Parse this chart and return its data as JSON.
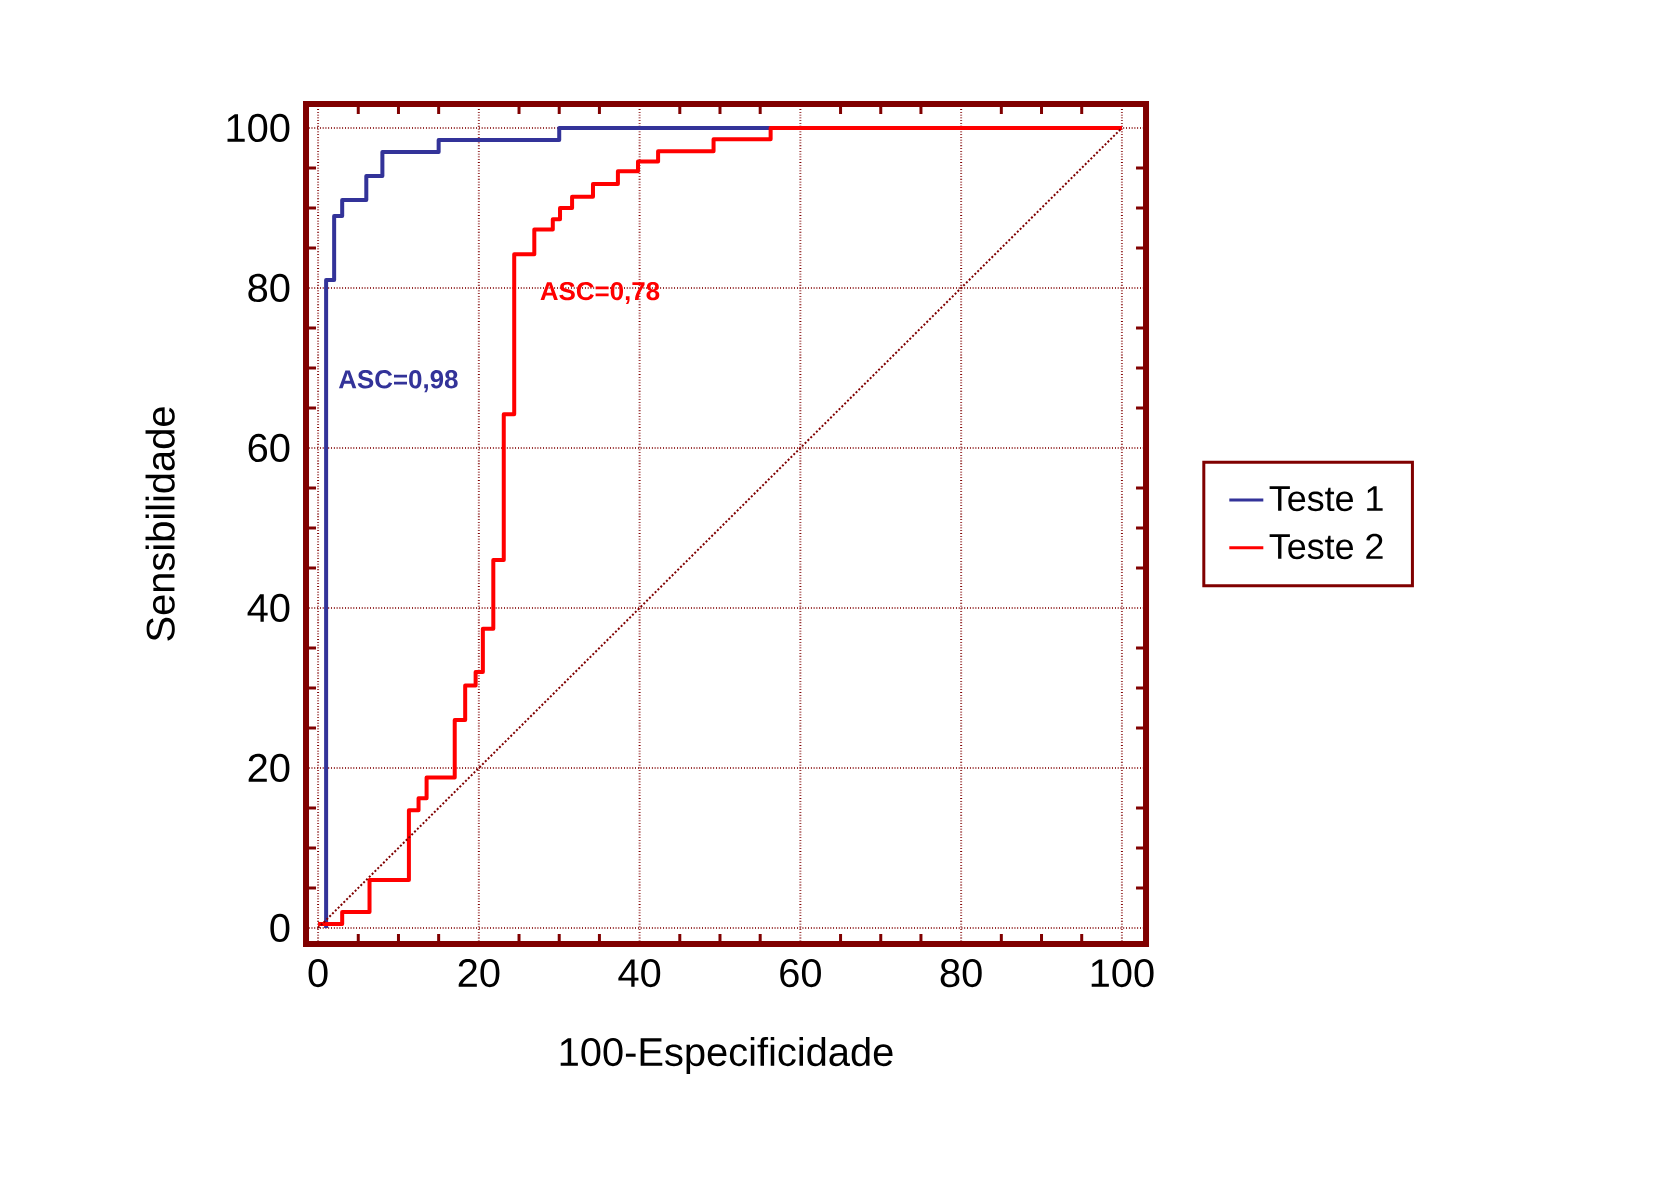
{
  "chart_data": {
    "type": "step",
    "xlabel": "100-Especificidade",
    "ylabel": "Sensibilidade",
    "xlim": [
      -1.5,
      103
    ],
    "ylim": [
      -2,
      103
    ],
    "xticks": [
      0,
      20,
      40,
      60,
      80,
      100
    ],
    "yticks": [
      0,
      20,
      40,
      60,
      80,
      100
    ],
    "grid": true,
    "legend": "right",
    "series": [
      {
        "name": "Teste 1",
        "color": "#333399",
        "line_style": "solid",
        "x": [
          1,
          1,
          2,
          2,
          3,
          3,
          6,
          6,
          8,
          8,
          15,
          15,
          30,
          30,
          100
        ],
        "values": [
          0,
          81,
          81,
          89,
          89,
          91,
          91,
          94,
          94,
          97,
          97,
          98.5,
          98.5,
          100,
          100
        ]
      },
      {
        "name": "Teste 2",
        "color": "#ff0000",
        "line_style": "solid",
        "x": [
          0,
          3,
          3,
          6.4,
          6.4,
          11.3,
          11.3,
          12.5,
          12.5,
          13.5,
          13.5,
          17,
          17,
          18.3,
          18.3,
          19.6,
          19.6,
          20.5,
          20.5,
          21.8,
          21.8,
          23.1,
          23.1,
          24.4,
          24.4,
          26.9,
          26.9,
          29.2,
          29.2,
          30.1,
          30.1,
          31.6,
          31.6,
          34.2,
          34.2,
          37.3,
          37.3,
          39.8,
          39.8,
          42.3,
          42.3,
          49.2,
          49.2,
          56.3,
          56.3,
          100
        ],
        "values": [
          0.5,
          0.5,
          2,
          2,
          6,
          6,
          14.7,
          14.7,
          16.2,
          16.2,
          18.8,
          18.8,
          26,
          26,
          30.3,
          30.3,
          32,
          32,
          37.4,
          37.4,
          46,
          46,
          64.2,
          64.2,
          84.2,
          84.2,
          87.3,
          87.3,
          88.6,
          88.6,
          90,
          90,
          91.4,
          91.4,
          93,
          93,
          94.6,
          94.6,
          95.8,
          95.8,
          97.1,
          97.1,
          98.6,
          98.6,
          100,
          100
        ]
      },
      {
        "type": "line",
        "color": "#800000",
        "line_style": "dotted",
        "x": [
          0,
          100
        ],
        "values": [
          0,
          100
        ]
      }
    ],
    "annotations": [
      "ASC=0,98",
      "ASC=0,78"
    ]
  }
}
